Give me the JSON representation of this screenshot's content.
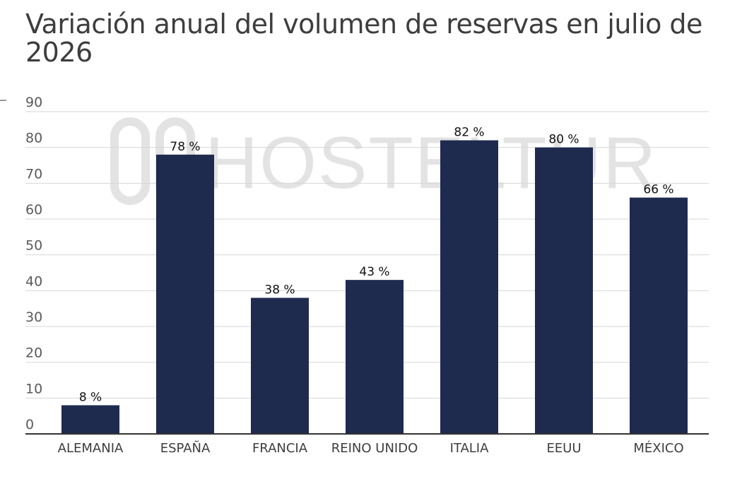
{
  "chart_data": {
    "type": "bar",
    "title": "Variación anual del volumen de reservas en julio de 2026",
    "categories": [
      "ALEMANIA",
      "ESPAÑA",
      "FRANCIA",
      "REINO UNIDO",
      "ITALIA",
      "EEUU",
      "MÉXICO"
    ],
    "values": [
      8,
      78,
      38,
      43,
      82,
      80,
      66
    ],
    "data_labels": [
      "8 %",
      "78 %",
      "38 %",
      "43 %",
      "82 %",
      "80 %",
      "66 %"
    ],
    "yticks": [
      "0",
      "10",
      "20",
      "30",
      "40",
      "50",
      "60",
      "70",
      "80",
      "90"
    ],
    "ylim": [
      0,
      90
    ],
    "grid": true,
    "xlabel": "",
    "ylabel": ""
  },
  "watermark": {
    "text": "HOSTELTUR",
    "icon": "hosteltur-logo-icon"
  },
  "colors": {
    "bar": "#1f2a4f",
    "grid": "#d6d6d6",
    "axis": "#333333",
    "title": "#3d3d3d",
    "watermark": "#e3e3e3"
  }
}
